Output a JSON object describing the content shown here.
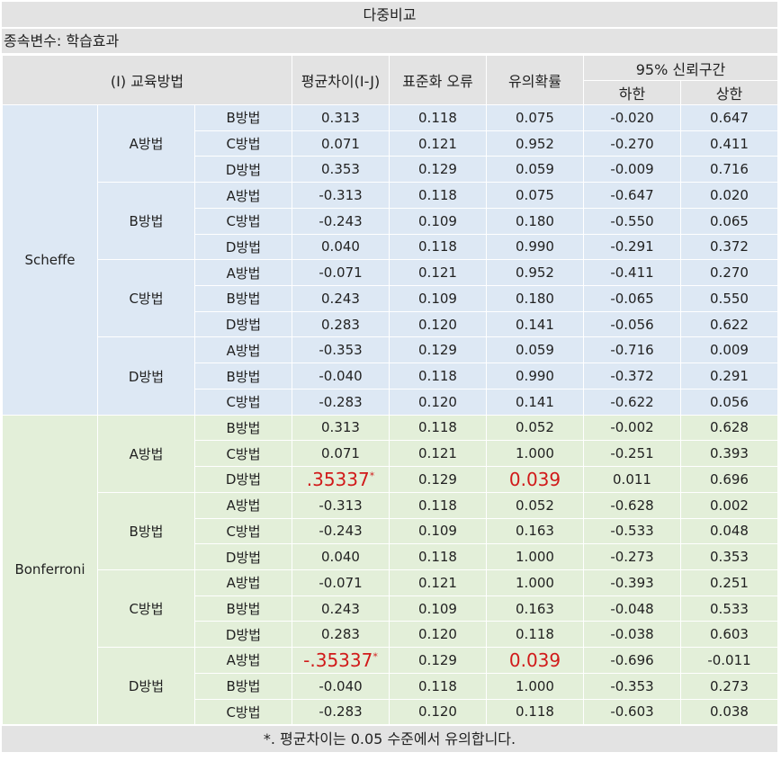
{
  "title": "다중비교",
  "dependent_var": "종속변수: 학습효과",
  "headers": {
    "group": "(I) 교육방법",
    "mean_diff": "평균차이(I-J)",
    "std_err": "표준화 오류",
    "sig": "유의확률",
    "ci": "95% 신뢰구간",
    "lower": "하한",
    "upper": "상한"
  },
  "sections": [
    {
      "method": "Scheffe",
      "groups": [
        {
          "label": "A방법",
          "rows": [
            {
              "j": "B방법",
              "diff": "0.313",
              "se": "0.118",
              "p": "0.075",
              "lo": "-0.020",
              "hi": "0.647"
            },
            {
              "j": "C방법",
              "diff": "0.071",
              "se": "0.121",
              "p": "0.952",
              "lo": "-0.270",
              "hi": "0.411"
            },
            {
              "j": "D방법",
              "diff": "0.353",
              "se": "0.129",
              "p": "0.059",
              "lo": "-0.009",
              "hi": "0.716"
            }
          ]
        },
        {
          "label": "B방법",
          "rows": [
            {
              "j": "A방법",
              "diff": "-0.313",
              "se": "0.118",
              "p": "0.075",
              "lo": "-0.647",
              "hi": "0.020"
            },
            {
              "j": "C방법",
              "diff": "-0.243",
              "se": "0.109",
              "p": "0.180",
              "lo": "-0.550",
              "hi": "0.065"
            },
            {
              "j": "D방법",
              "diff": "0.040",
              "se": "0.118",
              "p": "0.990",
              "lo": "-0.291",
              "hi": "0.372"
            }
          ]
        },
        {
          "label": "C방법",
          "rows": [
            {
              "j": "A방법",
              "diff": "-0.071",
              "se": "0.121",
              "p": "0.952",
              "lo": "-0.411",
              "hi": "0.270"
            },
            {
              "j": "B방법",
              "diff": "0.243",
              "se": "0.109",
              "p": "0.180",
              "lo": "-0.065",
              "hi": "0.550"
            },
            {
              "j": "D방법",
              "diff": "0.283",
              "se": "0.120",
              "p": "0.141",
              "lo": "-0.056",
              "hi": "0.622"
            }
          ]
        },
        {
          "label": "D방법",
          "rows": [
            {
              "j": "A방법",
              "diff": "-0.353",
              "se": "0.129",
              "p": "0.059",
              "lo": "-0.716",
              "hi": "0.009"
            },
            {
              "j": "B방법",
              "diff": "-0.040",
              "se": "0.118",
              "p": "0.990",
              "lo": "-0.372",
              "hi": "0.291"
            },
            {
              "j": "C방법",
              "diff": "-0.283",
              "se": "0.120",
              "p": "0.141",
              "lo": "-0.622",
              "hi": "0.056"
            }
          ]
        }
      ]
    },
    {
      "method": "Bonferroni",
      "groups": [
        {
          "label": "A방법",
          "rows": [
            {
              "j": "B방법",
              "diff": "0.313",
              "se": "0.118",
              "p": "0.052",
              "lo": "-0.002",
              "hi": "0.628"
            },
            {
              "j": "C방법",
              "diff": "0.071",
              "se": "0.121",
              "p": "1.000",
              "lo": "-0.251",
              "hi": "0.393"
            },
            {
              "j": "D방법",
              "diff": ".35337",
              "sig": true,
              "se": "0.129",
              "p": "0.039",
              "lo": "0.011",
              "hi": "0.696"
            }
          ]
        },
        {
          "label": "B방법",
          "rows": [
            {
              "j": "A방법",
              "diff": "-0.313",
              "se": "0.118",
              "p": "0.052",
              "lo": "-0.628",
              "hi": "0.002"
            },
            {
              "j": "C방법",
              "diff": "-0.243",
              "se": "0.109",
              "p": "0.163",
              "lo": "-0.533",
              "hi": "0.048"
            },
            {
              "j": "D방법",
              "diff": "0.040",
              "se": "0.118",
              "p": "1.000",
              "lo": "-0.273",
              "hi": "0.353"
            }
          ]
        },
        {
          "label": "C방법",
          "rows": [
            {
              "j": "A방법",
              "diff": "-0.071",
              "se": "0.121",
              "p": "1.000",
              "lo": "-0.393",
              "hi": "0.251"
            },
            {
              "j": "B방법",
              "diff": "0.243",
              "se": "0.109",
              "p": "0.163",
              "lo": "-0.048",
              "hi": "0.533"
            },
            {
              "j": "D방법",
              "diff": "0.283",
              "se": "0.120",
              "p": "0.118",
              "lo": "-0.038",
              "hi": "0.603"
            }
          ]
        },
        {
          "label": "D방법",
          "rows": [
            {
              "j": "A방법",
              "diff": "-.35337",
              "sig": true,
              "se": "0.129",
              "p": "0.039",
              "lo": "-0.696",
              "hi": "-0.011"
            },
            {
              "j": "B방법",
              "diff": "-0.040",
              "se": "0.118",
              "p": "1.000",
              "lo": "-0.353",
              "hi": "0.273"
            },
            {
              "j": "C방법",
              "diff": "-0.283",
              "se": "0.120",
              "p": "0.118",
              "lo": "-0.603",
              "hi": "0.038"
            }
          ]
        }
      ]
    }
  ],
  "sig_marker": "*",
  "footnote": "*. 평균차이는 0.05 수준에서 유의합니다.",
  "colors": {
    "header_bg": "#e3e3e3",
    "scheffe_bg": "#dde8f4",
    "bonferroni_bg": "#e3efd9",
    "significant": "#d11a1a"
  }
}
